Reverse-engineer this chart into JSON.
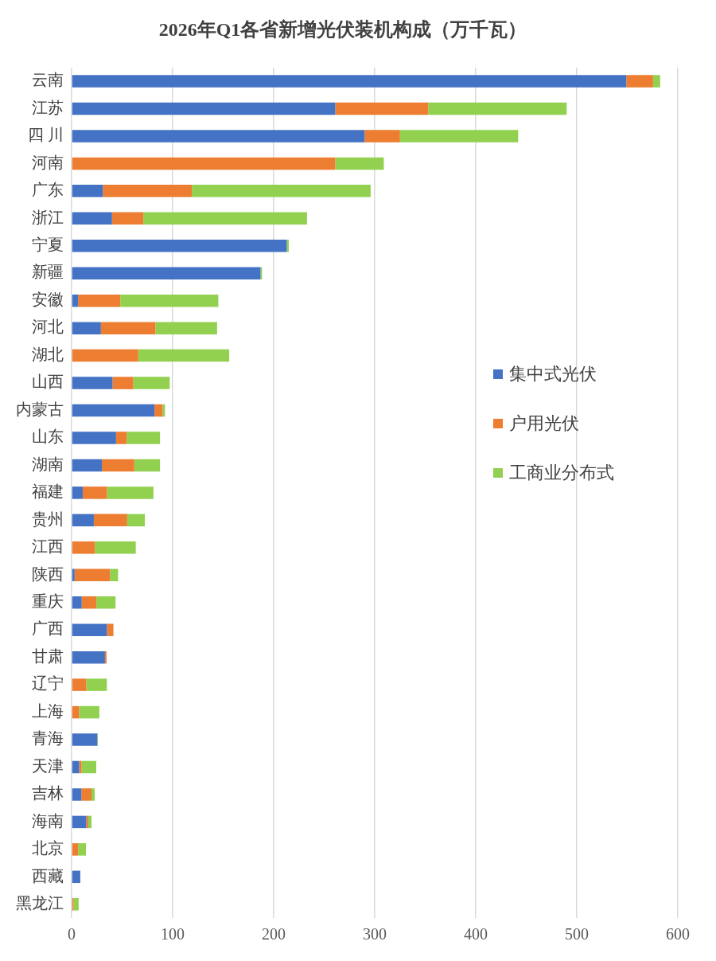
{
  "chart_data": {
    "type": "bar",
    "orientation": "horizontal",
    "stacked": true,
    "title": "2026年Q1各省新增光伏装机构成（万千瓦）",
    "categories": [
      "云南",
      "江苏",
      "四 川",
      "河南",
      "广东",
      "浙江",
      "宁夏",
      "新疆",
      "安徽",
      "河北",
      "湖北",
      "山西",
      "内蒙古",
      "山东",
      "湖南",
      "福建",
      "贵州",
      "江西",
      "陕西",
      "重庆",
      "广西",
      "甘肃",
      "辽宁",
      "上海",
      "青海",
      "天津",
      "吉林",
      "海南",
      "北京",
      "西藏",
      "黑龙江"
    ],
    "series": [
      {
        "name": "集中式光伏",
        "color": "#4472c4",
        "values": [
          549,
          261,
          290,
          0,
          31,
          40,
          213,
          187,
          6.4,
          29,
          0,
          40.5,
          82,
          44,
          30,
          11,
          22,
          0,
          3,
          10,
          35,
          33,
          0,
          null,
          25.5,
          7.5,
          9.7,
          14.5,
          0,
          8.6,
          null
        ]
      },
      {
        "name": "户用光伏",
        "color": "#ed7d31",
        "values": [
          26.5,
          92,
          35,
          261,
          88,
          31,
          0,
          0,
          41.8,
          54,
          66,
          20.6,
          8,
          10.5,
          32,
          24,
          33,
          23,
          35,
          14.5,
          6.4,
          1.6,
          14.5,
          7.5,
          0,
          2.4,
          10,
          2,
          6.4,
          0,
          2
        ]
      },
      {
        "name": "工商业分布式",
        "color": "#92d050",
        "values": [
          7,
          137,
          117,
          48,
          177,
          162,
          2,
          1.5,
          97,
          61,
          90,
          36,
          2.4,
          33,
          25.5,
          46,
          17.5,
          40.5,
          8,
          19,
          0,
          0,
          20.4,
          20,
          0.5,
          14.5,
          3.2,
          3.2,
          7.8,
          0,
          5
        ]
      }
    ],
    "xlim": [
      0,
      600
    ],
    "xticks": [
      0,
      100,
      200,
      300,
      400,
      500,
      600
    ],
    "grid": "x",
    "legend": "right"
  }
}
